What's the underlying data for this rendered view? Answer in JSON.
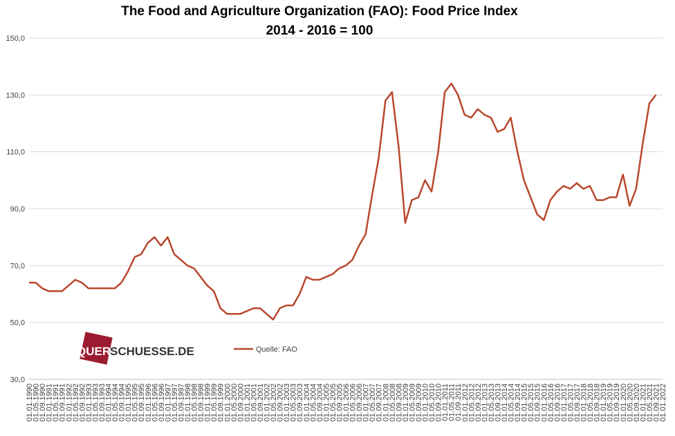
{
  "chart_data": {
    "type": "line",
    "title": "The Food and Agriculture Organization (FAO): Food Price Index",
    "subtitle": "2014 - 2016 = 100",
    "logo": [
      "QUER",
      "SCHUESSE.DE"
    ],
    "categories": [
      "01.01.1990",
      "01.05.1990",
      "01.09.1990",
      "01.01.1991",
      "01.05.1991",
      "01.09.1991",
      "01.01.1992",
      "01.05.1992",
      "01.09.1992",
      "01.01.1993",
      "01.05.1993",
      "01.09.1993",
      "01.01.1994",
      "01.05.1994",
      "01.09.1994",
      "01.01.1995",
      "01.05.1995",
      "01.09.1995",
      "01.01.1996",
      "01.05.1996",
      "01.09.1996",
      "01.01.1997",
      "01.05.1997",
      "01.09.1997",
      "01.01.1998",
      "01.05.1998",
      "01.09.1998",
      "01.01.1999",
      "01.05.1999",
      "01.09.1999",
      "01.01.2000",
      "01.05.2000",
      "01.09.2000",
      "01.01.2001",
      "01.05.2001",
      "01.09.2001",
      "01.01.2002",
      "01.05.2002",
      "01.09.2002",
      "01.01.2003",
      "01.05.2003",
      "01.09.2003",
      "01.01.2004",
      "01.05.2004",
      "01.09.2004",
      "01.01.2005",
      "01.05.2005",
      "01.09.2005",
      "01.01.2006",
      "01.05.2006",
      "01.09.2006",
      "01.01.2007",
      "01.05.2007",
      "01.09.2007",
      "01.01.2008",
      "01.05.2008",
      "01.09.2008",
      "01.01.2009",
      "01.05.2009",
      "01.09.2009",
      "01.01.2010",
      "01.05.2010",
      "01.09.2010",
      "01.01.2011",
      "01.05.2011",
      "01.09.2011",
      "01.01.2012",
      "01.05.2012",
      "01.09.2012",
      "01.01.2013",
      "01.05.2013",
      "01.09.2013",
      "01.01.2014",
      "01.05.2014",
      "01.09.2014",
      "01.01.2015",
      "01.05.2015",
      "01.09.2015",
      "01.01.2016",
      "01.05.2016",
      "01.09.2016",
      "01.01.2017",
      "01.05.2017",
      "01.09.2017",
      "01.01.2018",
      "01.05.2018",
      "01.09.2018",
      "01.01.2019",
      "01.05.2019",
      "01.09.2019",
      "01.01.2020",
      "01.05.2020",
      "01.09.2020",
      "01.01.2021",
      "01.05.2021",
      "01.09.2021",
      "01.01.2022"
    ],
    "series": [
      {
        "name": "Quelle: FAO",
        "color": "#b9472d",
        "values": [
          64,
          64,
          62,
          61,
          61,
          61,
          63,
          65,
          64,
          62,
          62,
          62,
          62,
          62,
          64,
          68,
          73,
          74,
          78,
          80,
          77,
          80,
          74,
          72,
          70,
          69,
          66,
          63,
          61,
          55,
          53,
          53,
          53,
          54,
          55,
          55,
          53,
          51,
          55,
          56,
          56,
          60,
          66,
          65,
          65,
          66,
          67,
          69,
          70,
          72,
          77,
          81,
          95,
          108,
          128,
          131,
          112,
          85,
          93,
          94,
          100,
          96,
          110,
          131,
          134,
          130,
          123,
          122,
          125,
          123,
          122,
          117,
          118,
          122,
          110,
          100,
          94,
          88,
          86,
          93,
          96,
          98,
          97,
          99,
          97,
          98,
          93,
          93,
          94,
          94,
          102,
          91,
          97,
          113,
          127,
          130,
          null
        ]
      }
    ],
    "ylim": [
      30,
      150
    ],
    "yticks": [
      {
        "value": 30,
        "label": "30,0"
      },
      {
        "value": 50,
        "label": "50,0"
      },
      {
        "value": 70,
        "label": "70,0"
      },
      {
        "value": 90,
        "label": "90,0"
      },
      {
        "value": 110,
        "label": "110,0"
      },
      {
        "value": 130,
        "label": "130,0"
      },
      {
        "value": 150,
        "label": "150,0"
      }
    ],
    "grid": true
  }
}
